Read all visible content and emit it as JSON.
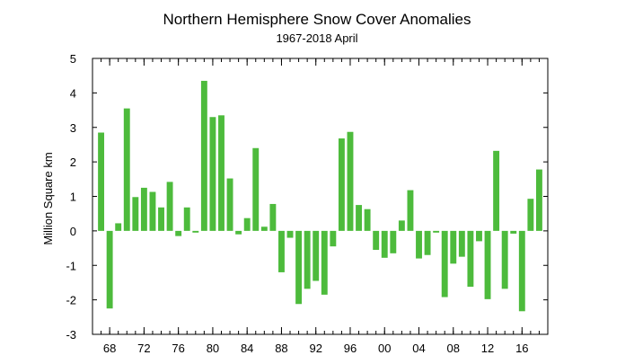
{
  "chart_data": {
    "type": "bar",
    "title": "Northern Hemisphere Snow Cover Anomalies",
    "subtitle": "1967-2018 April",
    "xlabel": "",
    "ylabel": "Million Square km",
    "ylim": [
      -3,
      5
    ],
    "yticks": [
      -3,
      -2,
      -1,
      0,
      1,
      2,
      3,
      4,
      5
    ],
    "xlim": [
      1966,
      2019
    ],
    "xticks": [
      {
        "year": 1968,
        "label": "68"
      },
      {
        "year": 1972,
        "label": "72"
      },
      {
        "year": 1976,
        "label": "76"
      },
      {
        "year": 1980,
        "label": "80"
      },
      {
        "year": 1984,
        "label": "84"
      },
      {
        "year": 1988,
        "label": "88"
      },
      {
        "year": 1992,
        "label": "92"
      },
      {
        "year": 1996,
        "label": "96"
      },
      {
        "year": 2000,
        "label": "00"
      },
      {
        "year": 2004,
        "label": "04"
      },
      {
        "year": 2008,
        "label": "08"
      },
      {
        "year": 2012,
        "label": "12"
      },
      {
        "year": 2016,
        "label": "16"
      }
    ],
    "bar_color": "#4dbb3c",
    "grid": false,
    "x": [
      1967,
      1968,
      1969,
      1970,
      1971,
      1972,
      1973,
      1974,
      1975,
      1976,
      1977,
      1978,
      1979,
      1980,
      1981,
      1982,
      1983,
      1984,
      1985,
      1986,
      1987,
      1988,
      1989,
      1990,
      1991,
      1992,
      1993,
      1994,
      1995,
      1996,
      1997,
      1998,
      1999,
      2000,
      2001,
      2002,
      2003,
      2004,
      2005,
      2006,
      2007,
      2008,
      2009,
      2010,
      2011,
      2012,
      2013,
      2014,
      2015,
      2016,
      2017,
      2018
    ],
    "values": [
      2.85,
      -2.25,
      0.22,
      3.55,
      0.98,
      1.25,
      1.13,
      0.68,
      1.42,
      -0.15,
      0.68,
      -0.05,
      4.35,
      3.3,
      3.35,
      1.52,
      -0.1,
      0.37,
      2.4,
      0.12,
      0.78,
      -1.2,
      -0.2,
      -2.12,
      -1.68,
      -1.45,
      -1.85,
      -0.45,
      2.68,
      2.87,
      0.75,
      0.63,
      -0.55,
      -0.78,
      -0.65,
      0.3,
      1.18,
      -0.8,
      -0.7,
      -0.05,
      -1.92,
      -0.95,
      -0.75,
      -1.62,
      -0.3,
      -1.98,
      2.32,
      -1.68,
      -0.08,
      -2.33,
      0.93,
      1.78
    ]
  }
}
